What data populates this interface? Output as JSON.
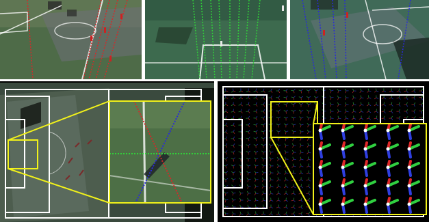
{
  "figure": {
    "panels": [
      {
        "id": "camera-view-1",
        "line_color": "#d42a2a",
        "ground": "#4f6a4a"
      },
      {
        "id": "camera-view-2",
        "line_color": "#31d13a",
        "ground": "#3c6a4c"
      },
      {
        "id": "camera-view-3",
        "line_color": "#2a2ad8",
        "ground": "#3f6a5a"
      },
      {
        "id": "pitch-mosaic-overlay",
        "highlight_color": "#f2f21a",
        "field_lines": "#ffffff"
      },
      {
        "id": "orientation-field-overlay",
        "highlight_color": "#f2f21a",
        "background": "#000000"
      }
    ]
  }
}
